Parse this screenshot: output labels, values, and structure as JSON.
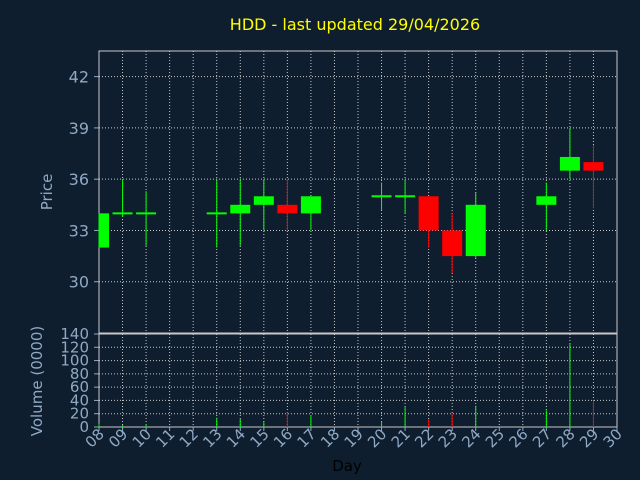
{
  "chart_data": {
    "type": "candlestick",
    "title": "HDD - last updated 29/04/2026",
    "xlabel": "Day",
    "ylabel": "Price",
    "volume_ylabel": "Volume (0000)",
    "x_ticks": [
      "08",
      "09",
      "10",
      "11",
      "12",
      "13",
      "14",
      "15",
      "16",
      "17",
      "18",
      "19",
      "20",
      "21",
      "22",
      "23",
      "24",
      "25",
      "26",
      "27",
      "28",
      "29",
      "30"
    ],
    "price_ticks": [
      30,
      33,
      36,
      39,
      42
    ],
    "price_ylim": [
      27.0,
      43.5
    ],
    "volume_ticks": [
      0,
      20,
      40,
      60,
      80,
      100,
      120,
      140
    ],
    "volume_ylim": [
      0,
      140
    ],
    "grid": true,
    "colors": {
      "background": "#0f1e2f",
      "grid": "#c8c8c8",
      "axis_text": "#8fa9c4",
      "title": "#ffff00",
      "up": "#00ff00",
      "down": "#ff0000"
    },
    "candles": [
      {
        "day": "08",
        "open": 32.0,
        "high": 34.0,
        "low": 32.0,
        "close": 34.0,
        "volume": 5
      },
      {
        "day": "09",
        "open": 33.9,
        "high": 36.0,
        "low": 33.8,
        "close": 34.0,
        "volume": 3
      },
      {
        "day": "10",
        "open": 34.0,
        "high": 35.3,
        "low": 32.1,
        "close": 34.0,
        "volume": 4
      },
      {
        "day": "13",
        "open": 33.9,
        "high": 36.0,
        "low": 32.0,
        "close": 34.0,
        "volume": 14
      },
      {
        "day": "14",
        "open": 34.0,
        "high": 36.0,
        "low": 32.1,
        "close": 34.5,
        "volume": 12
      },
      {
        "day": "15",
        "open": 34.5,
        "high": 36.0,
        "low": 33.0,
        "close": 35.0,
        "volume": 8
      },
      {
        "day": "16",
        "open": 34.5,
        "high": 36.0,
        "low": 33.0,
        "close": 34.0,
        "volume": 22
      },
      {
        "day": "17",
        "open": 34.0,
        "high": 35.0,
        "low": 33.0,
        "close": 35.0,
        "volume": 18
      },
      {
        "day": "20",
        "open": 35.0,
        "high": 35.8,
        "low": 34.2,
        "close": 35.0,
        "volume": 8
      },
      {
        "day": "21",
        "open": 35.0,
        "high": 36.0,
        "low": 34.0,
        "close": 35.0,
        "volume": 30
      },
      {
        "day": "22",
        "open": 35.0,
        "high": 35.0,
        "low": 32.0,
        "close": 33.0,
        "volume": 12
      },
      {
        "day": "23",
        "open": 33.0,
        "high": 34.0,
        "low": 30.5,
        "close": 31.5,
        "volume": 20
      },
      {
        "day": "24",
        "open": 31.5,
        "high": 35.2,
        "low": 31.4,
        "close": 34.5,
        "volume": 32
      },
      {
        "day": "27",
        "open": 34.5,
        "high": 35.8,
        "low": 33.0,
        "close": 35.0,
        "volume": 25
      },
      {
        "day": "28",
        "open": 36.5,
        "high": 39.0,
        "low": 36.0,
        "close": 37.3,
        "volume": 125
      },
      {
        "day": "29",
        "open": 37.0,
        "high": 38.0,
        "low": 34.3,
        "close": 36.5,
        "volume": 40
      }
    ]
  }
}
